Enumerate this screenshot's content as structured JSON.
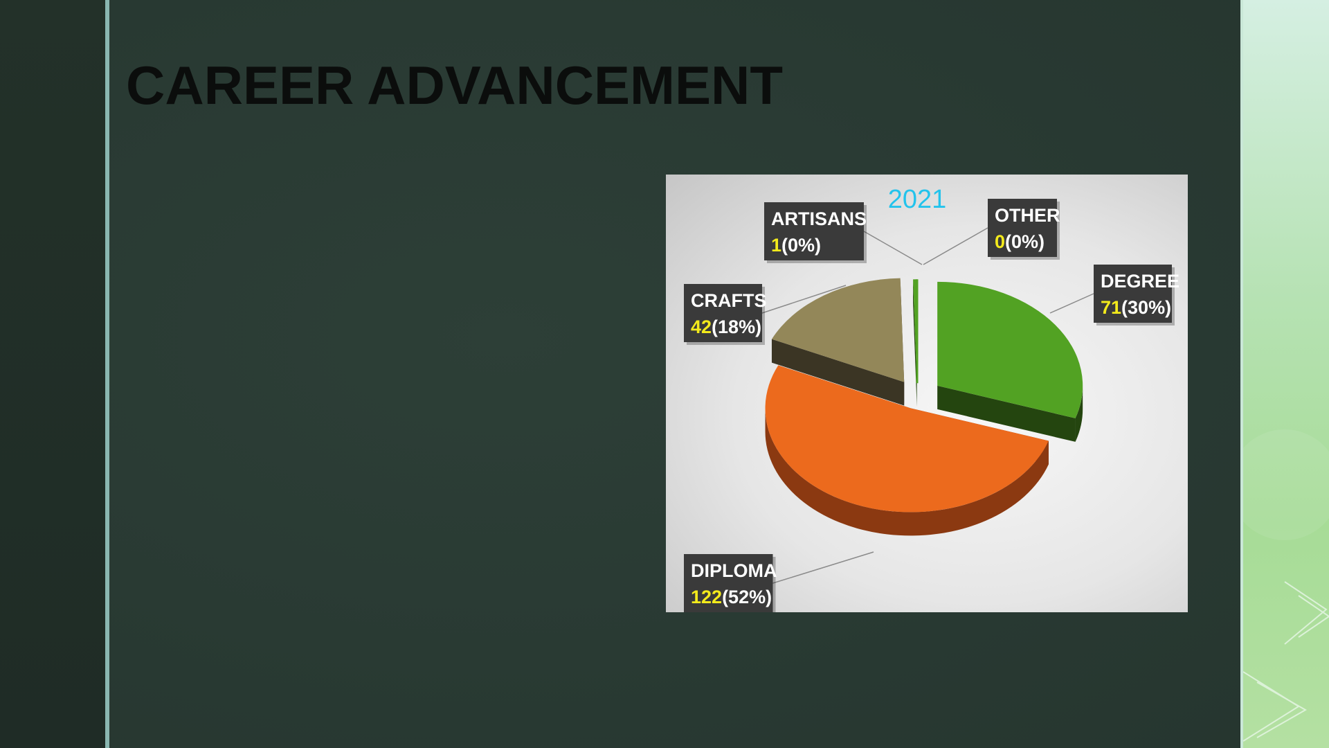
{
  "slide": {
    "title": "CAREER ADVANCEMENT"
  },
  "colors": {
    "background": "#293a33",
    "accent_rule": "#8ab7b1",
    "label_box": "#3a3a3a",
    "label_text": "#ffffff",
    "value_text": "#f3ea1c",
    "year_text": "#23c3ec"
  },
  "chart_data": {
    "type": "pie",
    "style": "3d-exploded",
    "title": "2021",
    "slices": [
      {
        "label": "DEGREE",
        "value": 71,
        "percent": "30%",
        "color": "#52a223",
        "side_color": "#24450f"
      },
      {
        "label": "DIPLOMA",
        "value": 122,
        "percent": "52%",
        "color": "#ec6a1d",
        "side_color": "#8b3911"
      },
      {
        "label": "CRAFTS",
        "value": 42,
        "percent": "18%",
        "color": "#938759",
        "side_color": "#3b3524"
      },
      {
        "label": "ARTISANS",
        "value": 1,
        "percent": "0%",
        "color": "#52a223",
        "side_color": "#24450f"
      },
      {
        "label": "OTHER",
        "value": 0,
        "percent": "0%",
        "color": "#52a223",
        "side_color": "#24450f"
      }
    ]
  }
}
